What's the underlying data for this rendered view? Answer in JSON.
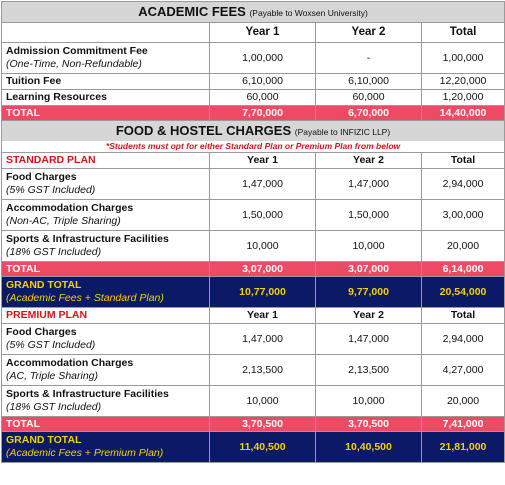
{
  "academic": {
    "title": "ACADEMIC FEES",
    "subtitle": "(Payable to Woxsen University)",
    "headers": [
      "Year 1",
      "Year 2",
      "Total"
    ],
    "rows": [
      {
        "label": "Admission Commitment Fee",
        "note": "(One-Time, Non-Refundable)",
        "y1": "1,00,000",
        "y2": "-",
        "total": "1,00,000"
      },
      {
        "label": "Tuition Fee",
        "y1": "6,10,000",
        "y2": "6,10,000",
        "total": "12,20,000"
      },
      {
        "label": "Learning Resources",
        "y1": "60,000",
        "y2": "60,000",
        "total": "1,20,000"
      }
    ],
    "total": {
      "label": "TOTAL",
      "y1": "7,70,000",
      "y2": "6,70,000",
      "total": "14,40,000"
    }
  },
  "food": {
    "title": "FOOD & HOSTEL CHARGES",
    "subtitle": "(Payable to INFIZIC LLP)",
    "note": "*Students must opt for either Standard Plan or Premium Plan from below"
  },
  "standard": {
    "plan": "STANDARD PLAN",
    "headers": [
      "Year 1",
      "Year 2",
      "Total"
    ],
    "rows": [
      {
        "label": "Food Charges",
        "note": "(5% GST Included)",
        "y1": "1,47,000",
        "y2": "1,47,000",
        "total": "2,94,000"
      },
      {
        "label": "Accommodation Charges",
        "note": "(Non-AC, Triple Sharing)",
        "y1": "1,50,000",
        "y2": "1,50,000",
        "total": "3,00,000"
      },
      {
        "label": "Sports & Infrastructure Facilities",
        "note": "(18% GST Included)",
        "y1": "10,000",
        "y2": "10,000",
        "total": "20,000"
      }
    ],
    "total": {
      "label": "TOTAL",
      "y1": "3,07,000",
      "y2": "3,07,000",
      "total": "6,14,000"
    },
    "grand": {
      "label": "GRAND TOTAL",
      "note": "(Academic Fees + Standard Plan)",
      "y1": "10,77,000",
      "y2": "9,77,000",
      "total": "20,54,000"
    }
  },
  "premium": {
    "plan": "PREMIUM PLAN",
    "headers": [
      "Year 1",
      "Year 2",
      "Total"
    ],
    "rows": [
      {
        "label": "Food Charges",
        "note": "(5% GST Included)",
        "y1": "1,47,000",
        "y2": "1,47,000",
        "total": "2,94,000"
      },
      {
        "label": "Accommodation Charges",
        "note": "(AC, Triple Sharing)",
        "y1": "2,13,500",
        "y2": "2,13,500",
        "total": "4,27,000"
      },
      {
        "label": "Sports & Infrastructure Facilities",
        "note": "(18% GST Included)",
        "y1": "10,000",
        "y2": "10,000",
        "total": "20,000"
      }
    ],
    "total": {
      "label": "TOTAL",
      "y1": "3,70,500",
      "y2": "3,70,500",
      "total": "7,41,000"
    },
    "grand": {
      "label": "GRAND TOTAL",
      "note": "(Academic Fees + Premium Plan)",
      "y1": "11,40,500",
      "y2": "10,40,500",
      "total": "21,81,000"
    }
  },
  "colors": {
    "header_bg": "#d6d6d6",
    "total_bg": "#ef4a63",
    "grand_bg": "#0b1a66",
    "grand_text": "#f5d000",
    "plan_text": "#d0151d"
  }
}
